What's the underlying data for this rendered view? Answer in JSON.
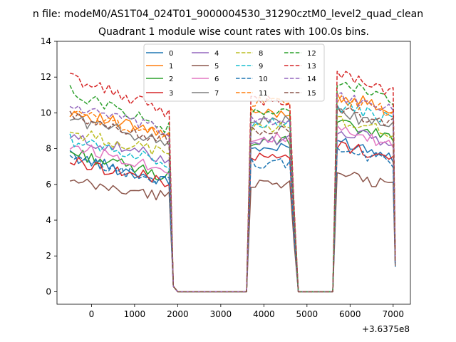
{
  "figure": {
    "suptitle": "n file: modeM0/AS1T04_024T01_9000004530_31290cztM0_level2_quad_clean",
    "offset_text": "+3.6375e8"
  },
  "chart_data": {
    "type": "line",
    "title": "Quadrant 1 module wise count rates with 100.0s bins.",
    "xlabel": "",
    "ylabel": "",
    "xlim": [
      -800,
      7400
    ],
    "ylim": [
      -0.7,
      14
    ],
    "xticks": [
      0,
      1000,
      2000,
      3000,
      4000,
      5000,
      6000,
      7000
    ],
    "xtick_labels": [
      "0",
      "1000",
      "2000",
      "3000",
      "4000",
      "5000",
      "6000",
      "7000"
    ],
    "yticks": [
      0,
      2,
      4,
      6,
      8,
      10,
      12,
      14
    ],
    "ytick_labels": [
      "0",
      "2",
      "4",
      "6",
      "8",
      "10",
      "12",
      "14"
    ],
    "legend_location": "upper center",
    "segments": [
      {
        "x_start": -500,
        "x_end": 1800,
        "step": 100
      },
      {
        "x_start": 3700,
        "x_end": 4600,
        "step": 100
      },
      {
        "x_start": 5700,
        "x_end": 7000,
        "step": 100
      }
    ],
    "gap_zero_x": [
      1900,
      2000,
      3600,
      4800,
      5600
    ],
    "end_x": 7050,
    "series": [
      {
        "name": "0",
        "color": "#1f77b4",
        "dash": "solid",
        "level": 7.6,
        "slope": 0.065,
        "seg2": 8.0,
        "seg3": 8.5,
        "end_value": 1.4
      },
      {
        "name": "1",
        "color": "#ff7f0e",
        "dash": "solid",
        "level": 10.1,
        "slope": 0.06,
        "seg2": 10.0,
        "seg3": 11.0,
        "end_value": 1.6
      },
      {
        "name": "2",
        "color": "#2ca02c",
        "dash": "solid",
        "level": 7.8,
        "slope": 0.06,
        "seg2": 8.4,
        "seg3": 9.4,
        "end_value": 1.6
      },
      {
        "name": "3",
        "color": "#d62728",
        "dash": "solid",
        "level": 7.3,
        "slope": 0.05,
        "seg2": 7.5,
        "seg3": 8.2,
        "end_value": 1.5
      },
      {
        "name": "4",
        "color": "#9467bd",
        "dash": "solid",
        "level": 8.6,
        "slope": 0.05,
        "seg2": 8.5,
        "seg3": 9.0,
        "end_value": 1.6
      },
      {
        "name": "5",
        "color": "#8c564b",
        "dash": "solid",
        "level": 6.1,
        "slope": 0.035,
        "seg2": 6.1,
        "seg3": 6.5,
        "end_value": 1.4
      },
      {
        "name": "6",
        "color": "#e377c2",
        "dash": "solid",
        "level": 8.2,
        "slope": 0.06,
        "seg2": 8.6,
        "seg3": 9.0,
        "end_value": 1.6
      },
      {
        "name": "7",
        "color": "#7f7f7f",
        "dash": "solid",
        "level": 9.7,
        "slope": 0.06,
        "seg2": 9.6,
        "seg3": 10.0,
        "end_value": 1.7
      },
      {
        "name": "8",
        "color": "#bcbd22",
        "dash": "dashed",
        "level": 8.9,
        "slope": 0.05,
        "seg2": 9.2,
        "seg3": 9.6,
        "end_value": 1.6
      },
      {
        "name": "9",
        "color": "#17becf",
        "dash": "dashed",
        "level": 8.5,
        "slope": 0.055,
        "seg2": 9.4,
        "seg3": 10.4,
        "end_value": 1.7
      },
      {
        "name": "10",
        "color": "#1f77b4",
        "dash": "dashed",
        "level": 7.4,
        "slope": 0.055,
        "seg2": 7.2,
        "seg3": 8.0,
        "end_value": 1.4
      },
      {
        "name": "11",
        "color": "#ff7f0e",
        "dash": "dashed",
        "level": 10.0,
        "slope": 0.055,
        "seg2": 10.6,
        "seg3": 10.8,
        "end_value": 1.7
      },
      {
        "name": "12",
        "color": "#2ca02c",
        "dash": "dashed",
        "level": 11.2,
        "slope": 0.09,
        "seg2": 10.0,
        "seg3": 11.8,
        "end_value": 1.8
      },
      {
        "name": "13",
        "color": "#d62728",
        "dash": "dashed",
        "level": 12.0,
        "slope": 0.085,
        "seg2": 10.7,
        "seg3": 12.3,
        "end_value": 1.9
      },
      {
        "name": "14",
        "color": "#9467bd",
        "dash": "dashed",
        "level": 10.4,
        "slope": 0.065,
        "seg2": 9.6,
        "seg3": 11.0,
        "end_value": 1.7
      },
      {
        "name": "15",
        "color": "#8c564b",
        "dash": "dashed",
        "level": 9.8,
        "slope": 0.06,
        "seg2": 9.0,
        "seg3": 10.2,
        "end_value": 1.6
      }
    ]
  }
}
